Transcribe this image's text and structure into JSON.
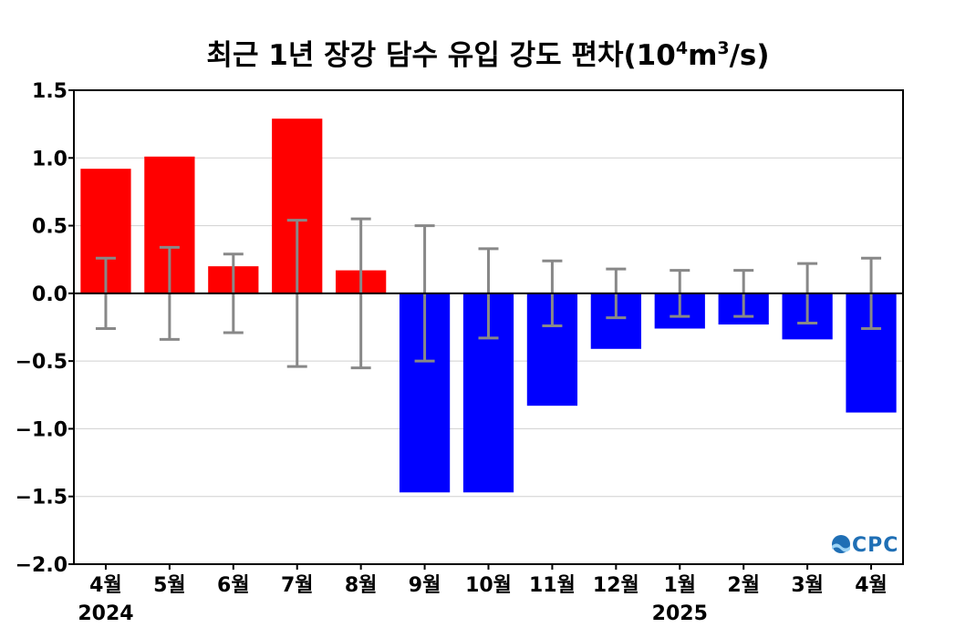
{
  "chart_data": {
    "type": "bar",
    "title": "최근 1년 장강 담수 유입 강도 편차(10⁴m³/s)",
    "title_parts": {
      "main": "최근 1년 장강 담수 유입 강도 편차(10",
      "exp1": "4",
      "mid": "m",
      "exp2": "3",
      "tail": "/s)"
    },
    "categories": [
      "4월",
      "5월",
      "6월",
      "7월",
      "8월",
      "9월",
      "10월",
      "11월",
      "12월",
      "1월",
      "2월",
      "3월",
      "4월"
    ],
    "year_labels": [
      {
        "text": "2024",
        "category_index": 0
      },
      {
        "text": "2025",
        "category_index": 9
      }
    ],
    "values": [
      0.92,
      1.01,
      0.2,
      1.29,
      0.17,
      -1.47,
      -1.47,
      -0.83,
      -0.41,
      -0.26,
      -0.23,
      -0.34,
      -0.88
    ],
    "error_bars": [
      0.26,
      0.34,
      0.29,
      0.54,
      0.55,
      0.5,
      0.33,
      0.24,
      0.18,
      0.17,
      0.17,
      0.22,
      0.26
    ],
    "ylim": [
      -2.0,
      1.5
    ],
    "yticks": [
      1.5,
      1.0,
      0.5,
      0.0,
      -0.5,
      -1.0,
      -1.5,
      -2.0
    ],
    "ytick_labels": [
      "1.5",
      "1.0",
      "0.5",
      "0.0",
      "−0.5",
      "−1.0",
      "−1.5",
      "−2.0"
    ],
    "xlabel": "",
    "ylabel": "",
    "grid": "horizontal",
    "colors": {
      "positive": "#ff0000",
      "negative": "#0000ff",
      "error_bar": "#888888",
      "zero_line": "#000000",
      "grid": "#d0d0d0"
    }
  },
  "logo": {
    "text": "OCPC",
    "color": "#1f6fb5"
  }
}
